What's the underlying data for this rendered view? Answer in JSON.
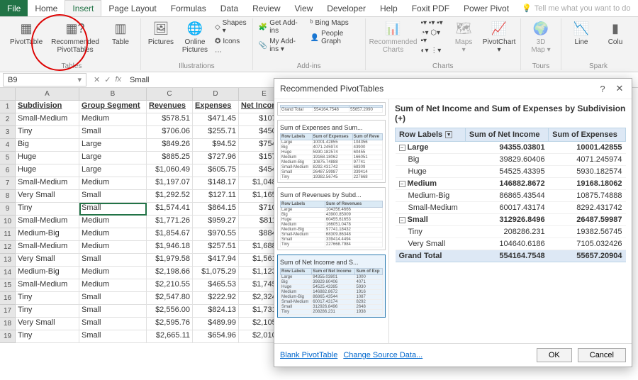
{
  "tabs": {
    "file": "File",
    "home": "Home",
    "insert": "Insert",
    "pageLayout": "Page Layout",
    "formulas": "Formulas",
    "data": "Data",
    "review": "Review",
    "view": "View",
    "developer": "Developer",
    "help": "Help",
    "foxit": "Foxit PDF",
    "powerPivot": "Power Pivot"
  },
  "tellMe": "Tell me what you want to do",
  "ribbon": {
    "pivotTable": "PivotTable",
    "recommendedPivot": "Recommended\nPivotTables",
    "table": "Table",
    "pictures": "Pictures",
    "onlinePictures": "Online\nPictures",
    "shapes": "Shapes ▾",
    "icons": "Icons",
    "getAddins": "Get Add-ins",
    "myAddins": "My Add-ins ▾",
    "bingMaps": "Bing Maps",
    "peopleGraph": "People Graph",
    "recCharts": "Recommended\nCharts",
    "maps": "Maps\n▾",
    "pivotChart": "PivotChart\n▾",
    "threeDMap": "3D\nMap ▾",
    "line": "Line",
    "colu": "Colu",
    "grp_tables": "Tables",
    "grp_illus": "Illustrations",
    "grp_addins": "Add-ins",
    "grp_charts": "Charts",
    "grp_tours": "Tours",
    "grp_spark": "Spark"
  },
  "nameBox": "B9",
  "fxValue": "Small",
  "gridCols": [
    "A",
    "B",
    "C",
    "D",
    "E"
  ],
  "gridHeaders": [
    "Subdivision",
    "Group Segment",
    "Revenues",
    "Expenses",
    "Net Income"
  ],
  "gridRows": [
    [
      "Small-Medium",
      "Medium",
      "$578.51",
      "$471.45",
      "$107.05"
    ],
    [
      "Tiny",
      "Small",
      "$706.06",
      "$255.71",
      "$450.35"
    ],
    [
      "Big",
      "Large",
      "$849.26",
      "$94.52",
      "$754.74"
    ],
    [
      "Huge",
      "Large",
      "$885.25",
      "$727.96",
      "$157.29"
    ],
    [
      "Huge",
      "Large",
      "$1,060.49",
      "$605.75",
      "$454.74"
    ],
    [
      "Small-Medium",
      "Medium",
      "$1,197.07",
      "$148.17",
      "$1,048.89"
    ],
    [
      "Very Small",
      "Small",
      "$1,292.52",
      "$127.11",
      "$1,165.41"
    ],
    [
      "Tiny",
      "Small",
      "$1,574.41",
      "$864.15",
      "$710.27"
    ],
    [
      "Small-Medium",
      "Medium",
      "$1,771.26",
      "$959.27",
      "$811.99"
    ],
    [
      "Medium-Big",
      "Medium",
      "$1,854.67",
      "$970.55",
      "$884.12"
    ],
    [
      "Small-Medium",
      "Medium",
      "$1,946.18",
      "$257.51",
      "$1,688.67"
    ],
    [
      "Very Small",
      "Small",
      "$1,979.58",
      "$417.94",
      "$1,561.64"
    ],
    [
      "Medium-Big",
      "Medium",
      "$2,198.66",
      "$1,075.29",
      "$1,123.36"
    ],
    [
      "Small-Medium",
      "Medium",
      "$2,210.55",
      "$465.53",
      "$1,745.02"
    ],
    [
      "Tiny",
      "Small",
      "$2,547.80",
      "$222.92",
      "$2,324.88"
    ],
    [
      "Tiny",
      "Small",
      "$2,556.00",
      "$824.13",
      "$1,731.87"
    ],
    [
      "Very Small",
      "Small",
      "$2,595.76",
      "$489.99",
      "$2,105.77"
    ],
    [
      "Tiny",
      "Small",
      "$2,665.11",
      "$654.96",
      "$2,010.15"
    ]
  ],
  "selectedCell": {
    "row": 9,
    "col": "B"
  },
  "dialog": {
    "title": "Recommended PivotTables",
    "help": "?",
    "close": "✕",
    "previewTitle": "Sum of Net Income and Sum of Expenses by Subdivision (+)",
    "rowLabelsHdr": "Row Labels",
    "col1": "Sum of Net Income",
    "col2": "Sum of Expenses",
    "rows": [
      {
        "type": "group",
        "label": "Large",
        "v1": "94355.03801",
        "v2": "10001.42855"
      },
      {
        "type": "item",
        "label": "Big",
        "v1": "39829.60406",
        "v2": "4071.245974"
      },
      {
        "type": "item",
        "label": "Huge",
        "v1": "54525.43395",
        "v2": "5930.182574"
      },
      {
        "type": "group",
        "label": "Medium",
        "v1": "146882.8672",
        "v2": "19168.18062"
      },
      {
        "type": "item",
        "label": "Medium-Big",
        "v1": "86865.43544",
        "v2": "10875.74888"
      },
      {
        "type": "item",
        "label": "Small-Medium",
        "v1": "60017.43174",
        "v2": "8292.431742"
      },
      {
        "type": "group",
        "label": "Small",
        "v1": "312926.8496",
        "v2": "26487.59987"
      },
      {
        "type": "item",
        "label": "Tiny",
        "v1": "208286.231",
        "v2": "19382.56745"
      },
      {
        "type": "item",
        "label": "Very Small",
        "v1": "104640.6186",
        "v2": "7105.032426"
      },
      {
        "type": "total",
        "label": "Grand Total",
        "v1": "554164.7548",
        "v2": "55657.20904"
      }
    ],
    "thumbs": [
      {
        "title": "",
        "sel": false,
        "header": [
          "",
          "",
          ""
        ],
        "rows": [
          [
            "Grand Total",
            "554164.7548",
            "55657.2090"
          ]
        ]
      },
      {
        "title": "Sum of Expenses and Sum...",
        "sel": false,
        "header": [
          "Row Labels",
          "Sum of Expenses",
          "Sum of Reve"
        ],
        "rows": [
          [
            "Large",
            "10001.42855",
            "104356"
          ],
          [
            "  Big",
            "4071.245974",
            "43900"
          ],
          [
            "  Huge",
            "5930.182574",
            "60455"
          ],
          [
            "Medium",
            "19168.18062",
            "166051"
          ],
          [
            "  Medium-Big",
            "10875.74888",
            "97741"
          ],
          [
            "  Small-Medium",
            "8292.431742",
            "68309"
          ],
          [
            "Small",
            "26487.59987",
            "339414"
          ],
          [
            "  Tiny",
            "19382.56745",
            "227668"
          ]
        ]
      },
      {
        "title": "Sum of Revenues by Subd...",
        "sel": false,
        "header": [
          "Row Labels",
          "Sum of Revenues"
        ],
        "rows": [
          [
            "Large",
            "104356.4666"
          ],
          [
            "  Big",
            "43900.85009"
          ],
          [
            "  Huge",
            "60455.61653"
          ],
          [
            "Medium",
            "166051.0478"
          ],
          [
            "  Medium-Big",
            "97741.18432"
          ],
          [
            "  Small-Medium",
            "68309.86348"
          ],
          [
            "Small",
            "339414.4494"
          ],
          [
            "  Tiny",
            "227668.7984"
          ]
        ]
      },
      {
        "title": "Sum of Net Income and S...",
        "sel": true,
        "header": [
          "Row Labels",
          "Sum of Net Income",
          "Sum of Exp"
        ],
        "rows": [
          [
            "Large",
            "94355.03801",
            "1000"
          ],
          [
            "  Big",
            "39829.60406",
            "4071"
          ],
          [
            "  Huge",
            "54525.43395",
            "5930"
          ],
          [
            "Medium",
            "146882.8672",
            "1916"
          ],
          [
            "  Medium-Big",
            "86865.43544",
            "1087"
          ],
          [
            "  Small-Medium",
            "60017.43174",
            "8292"
          ],
          [
            "Small",
            "312926.8496",
            "2648"
          ],
          [
            "  Tiny",
            "208286.231",
            "1938"
          ]
        ]
      }
    ],
    "blankBtn": "Blank PivotTable",
    "changeSrc": "Change Source Data...",
    "ok": "OK",
    "cancel": "Cancel"
  },
  "colors": {
    "excel_green": "#217346",
    "highlight_red": "#d00",
    "header_blue": "#dde8f5"
  }
}
